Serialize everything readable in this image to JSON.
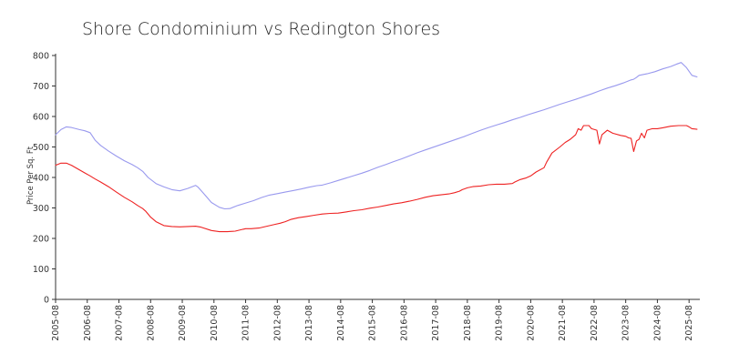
{
  "chart_data": {
    "type": "line",
    "title": "Shore Condominium vs Redington Shores",
    "xlabel": "",
    "ylabel": "Price Per Sq. Ft",
    "ylim": [
      0,
      800
    ],
    "xlim": [
      2005.58,
      2025.92
    ],
    "yticks": [
      0,
      100,
      200,
      300,
      400,
      500,
      600,
      700,
      800
    ],
    "ytick_labels": [
      "0",
      "100",
      "200",
      "300",
      "400",
      "500",
      "600",
      "700",
      "800"
    ],
    "xtick_labels": [
      "2005-08",
      "2006-08",
      "2007-08",
      "2008-08",
      "2009-08",
      "2010-08",
      "2011-08",
      "2012-08",
      "2013-08",
      "2014-08",
      "2015-08",
      "2016-08",
      "2017-08",
      "2018-08",
      "2019-08",
      "2020-08",
      "2021-08",
      "2022-08",
      "2023-08",
      "2024-08",
      "2025-08"
    ],
    "grid": false,
    "legend": "none",
    "series": [
      {
        "name": "Redington Shores",
        "color": "#9999ee",
        "x": [
          2005.58,
          2005.75,
          2005.92,
          2006.08,
          2006.33,
          2006.5,
          2006.67,
          2006.83,
          2007.0,
          2007.25,
          2007.5,
          2007.75,
          2008.0,
          2008.17,
          2008.33,
          2008.5,
          2008.75,
          2009.0,
          2009.25,
          2009.5,
          2009.75,
          2010.0,
          2010.08,
          2010.25,
          2010.5,
          2010.75,
          2010.92,
          2011.08,
          2011.33,
          2011.58,
          2011.83,
          2012.08,
          2012.33,
          2012.58,
          2012.83,
          2013.08,
          2013.33,
          2013.58,
          2013.83,
          2014.0,
          2014.25,
          2014.5,
          2014.75,
          2015.0,
          2015.25,
          2015.5,
          2015.75,
          2016.0,
          2016.25,
          2016.5,
          2016.75,
          2017.0,
          2017.25,
          2017.5,
          2017.75,
          2018.0,
          2018.25,
          2018.5,
          2018.75,
          2019.0,
          2019.25,
          2019.5,
          2019.75,
          2020.0,
          2020.25,
          2020.5,
          2020.75,
          2021.0,
          2021.25,
          2021.5,
          2021.75,
          2022.0,
          2022.25,
          2022.5,
          2022.75,
          2023.0,
          2023.25,
          2023.5,
          2023.75,
          2023.83,
          2023.92,
          2024.0,
          2024.25,
          2024.5,
          2024.75,
          2025.0,
          2025.17,
          2025.33,
          2025.5,
          2025.67,
          2025.83
        ],
        "values": [
          540,
          557,
          566,
          564,
          557,
          553,
          547,
          522,
          505,
          487,
          470,
          455,
          442,
          432,
          420,
          400,
          380,
          369,
          360,
          356,
          364,
          374,
          368,
          348,
          318,
          302,
          297,
          298,
          308,
          316,
          324,
          334,
          342,
          347,
          352,
          357,
          362,
          368,
          373,
          375,
          382,
          390,
          398,
          406,
          414,
          423,
          433,
          442,
          452,
          461,
          471,
          481,
          490,
          499,
          508,
          517,
          526,
          535,
          545,
          555,
          564,
          572,
          580,
          589,
          597,
          606,
          614,
          622,
          631,
          640,
          648,
          656,
          665,
          674,
          684,
          693,
          701,
          710,
          720,
          722,
          728,
          735,
          740,
          747,
          756,
          764,
          771,
          777,
          760,
          735,
          730
        ]
      },
      {
        "name": "Shore Condominium",
        "color": "#ee2222",
        "x": [
          2005.58,
          2005.75,
          2005.92,
          2006.08,
          2006.33,
          2006.5,
          2006.67,
          2006.83,
          2007.0,
          2007.25,
          2007.5,
          2007.75,
          2008.0,
          2008.17,
          2008.33,
          2008.42,
          2008.58,
          2008.75,
          2009.0,
          2009.25,
          2009.5,
          2009.75,
          2010.0,
          2010.17,
          2010.5,
          2010.75,
          2011.0,
          2011.25,
          2011.5,
          2011.58,
          2011.75,
          2012.0,
          2012.25,
          2012.5,
          2012.67,
          2012.83,
          2013.0,
          2013.25,
          2013.5,
          2013.75,
          2014.0,
          2014.25,
          2014.5,
          2014.75,
          2015.0,
          2015.25,
          2015.5,
          2015.75,
          2016.0,
          2016.25,
          2016.5,
          2016.75,
          2017.0,
          2017.25,
          2017.5,
          2017.75,
          2018.0,
          2018.17,
          2018.33,
          2018.42,
          2018.58,
          2018.75,
          2019.0,
          2019.25,
          2019.5,
          2019.75,
          2020.0,
          2020.08,
          2020.25,
          2020.42,
          2020.58,
          2020.75,
          2021.0,
          2021.08,
          2021.25,
          2021.5,
          2021.67,
          2021.83,
          2022.0,
          2022.08,
          2022.17,
          2022.25,
          2022.42,
          2022.5,
          2022.67,
          2022.75,
          2022.83,
          2023.0,
          2023.17,
          2023.42,
          2023.58,
          2023.67,
          2023.75,
          2023.83,
          2023.92,
          2024.0,
          2024.08,
          2024.17,
          2024.25,
          2024.42,
          2024.58,
          2024.75,
          2025.0,
          2025.25,
          2025.5,
          2025.58,
          2025.67,
          2025.83
        ],
        "values": [
          440,
          447,
          447,
          440,
          425,
          415,
          405,
          395,
          385,
          370,
          352,
          335,
          320,
          308,
          298,
          290,
          270,
          255,
          242,
          239,
          238,
          239,
          240,
          237,
          226,
          222,
          222,
          224,
          230,
          232,
          232,
          234,
          240,
          246,
          250,
          255,
          262,
          268,
          272,
          276,
          280,
          282,
          283,
          287,
          291,
          294,
          299,
          303,
          308,
          313,
          317,
          322,
          328,
          335,
          340,
          343,
          346,
          350,
          355,
          360,
          366,
          370,
          372,
          376,
          378,
          378,
          380,
          385,
          393,
          398,
          405,
          418,
          432,
          450,
          480,
          500,
          515,
          525,
          540,
          560,
          555,
          570,
          570,
          560,
          555,
          510,
          540,
          555,
          545,
          538,
          535,
          530,
          528,
          485,
          520,
          525,
          545,
          530,
          555,
          560,
          560,
          563,
          568,
          570,
          570,
          566,
          560,
          558
        ]
      }
    ]
  }
}
